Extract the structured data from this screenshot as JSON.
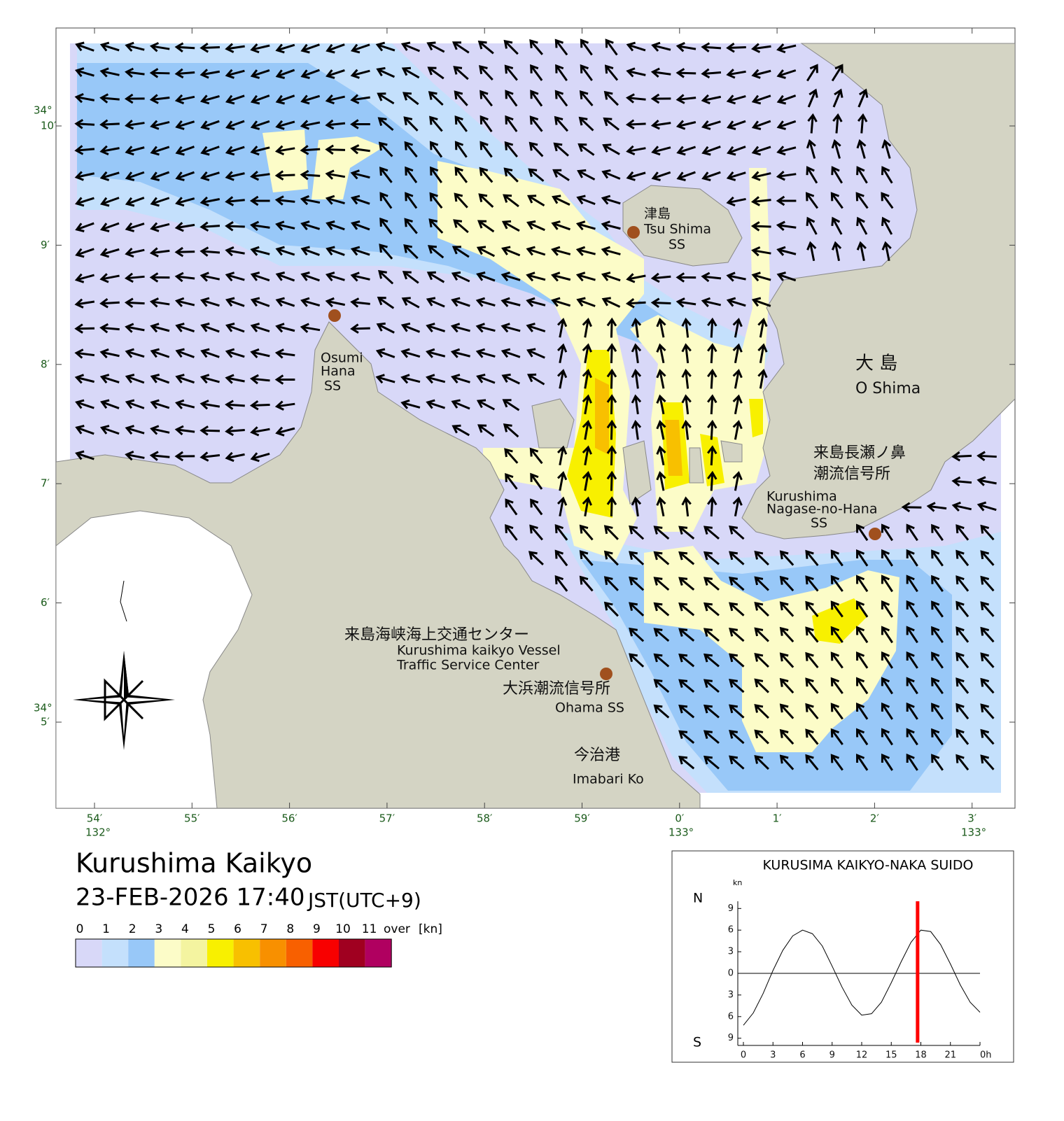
{
  "map": {
    "places": [
      {
        "lines": [
          "津島",
          "Tsu Shima",
          "SS"
        ]
      },
      {
        "lines": [
          "Osumi",
          "Hana",
          "SS"
        ]
      },
      {
        "lines": [
          "大 島",
          "O Shima"
        ]
      },
      {
        "lines": [
          "来島長瀬ノ鼻",
          "潮流信号所",
          "Kurushima",
          "Nagase-no-Hana",
          "SS"
        ]
      },
      {
        "lines": [
          "来島海峡海上交通センター",
          "Kurushima kaikyo Vessel",
          "Traffic Service Center"
        ]
      },
      {
        "lines": [
          "大浜潮流信号所",
          "Ohama SS"
        ]
      },
      {
        "lines": [
          "今治港",
          "Imabari Ko"
        ]
      }
    ],
    "lon_ticks": [
      "54′",
      "55′",
      "56′",
      "57′",
      "58′",
      "59′",
      "0′",
      "1′",
      "2′",
      "3′"
    ],
    "lon_degree_labels": [
      "132°",
      "133°",
      "133°"
    ],
    "lat_ticks": [
      "10′",
      "9′",
      "8′",
      "7′",
      "6′",
      "5′"
    ],
    "lat_degree_labels": [
      "34°",
      "34°"
    ]
  },
  "title": "Kurushima Kaikyo",
  "datetime": "23-FEB-2026 17:40",
  "timezone": "JST(UTC+9)",
  "legend": {
    "bounds": [
      0,
      1,
      2,
      3,
      4,
      5,
      6,
      7,
      8,
      9,
      10,
      11
    ],
    "over_label": "over",
    "unit": "[kn]",
    "colors": [
      "#d8d8f8",
      "#c4e0fc",
      "#98c8f8",
      "#fcfcc8",
      "#f4f4a0",
      "#f8f000",
      "#f8c000",
      "#f89000",
      "#f86000",
      "#f80000",
      "#a00020",
      "#b00060"
    ]
  },
  "tide_chart": {
    "type": "line",
    "title": "KURUSIMA KAIKYO-NAKA SUIDO",
    "y_unit": "kn",
    "north_label": "N",
    "south_label": "S",
    "x": [
      0,
      1,
      2,
      3,
      4,
      5,
      6,
      7,
      8,
      9,
      10,
      11,
      12,
      13,
      14,
      15,
      16,
      17,
      18,
      19,
      20,
      21,
      22,
      23,
      24
    ],
    "values": [
      -7.2,
      -5.5,
      -2.8,
      0.4,
      3.2,
      5.2,
      6.0,
      5.5,
      3.8,
      1.0,
      -1.9,
      -4.4,
      -5.8,
      -5.6,
      -4.0,
      -1.3,
      1.6,
      4.3,
      6.0,
      5.8,
      4.0,
      1.3,
      -1.6,
      -4.0,
      -5.4
    ],
    "xlim": [
      0,
      24
    ],
    "ylim": [
      -10,
      10
    ],
    "xticks": [
      0,
      3,
      6,
      9,
      12,
      15,
      18,
      21,
      {
        "value": 24,
        "label": "0h"
      }
    ],
    "yticks": [
      {
        "value": -9,
        "label": "9"
      },
      {
        "value": -6,
        "label": "6"
      },
      {
        "value": -3,
        "label": "3"
      },
      0,
      3,
      6,
      9
    ],
    "current_hour": 17.67,
    "current_color": "#ff0000",
    "color": "#000000"
  }
}
